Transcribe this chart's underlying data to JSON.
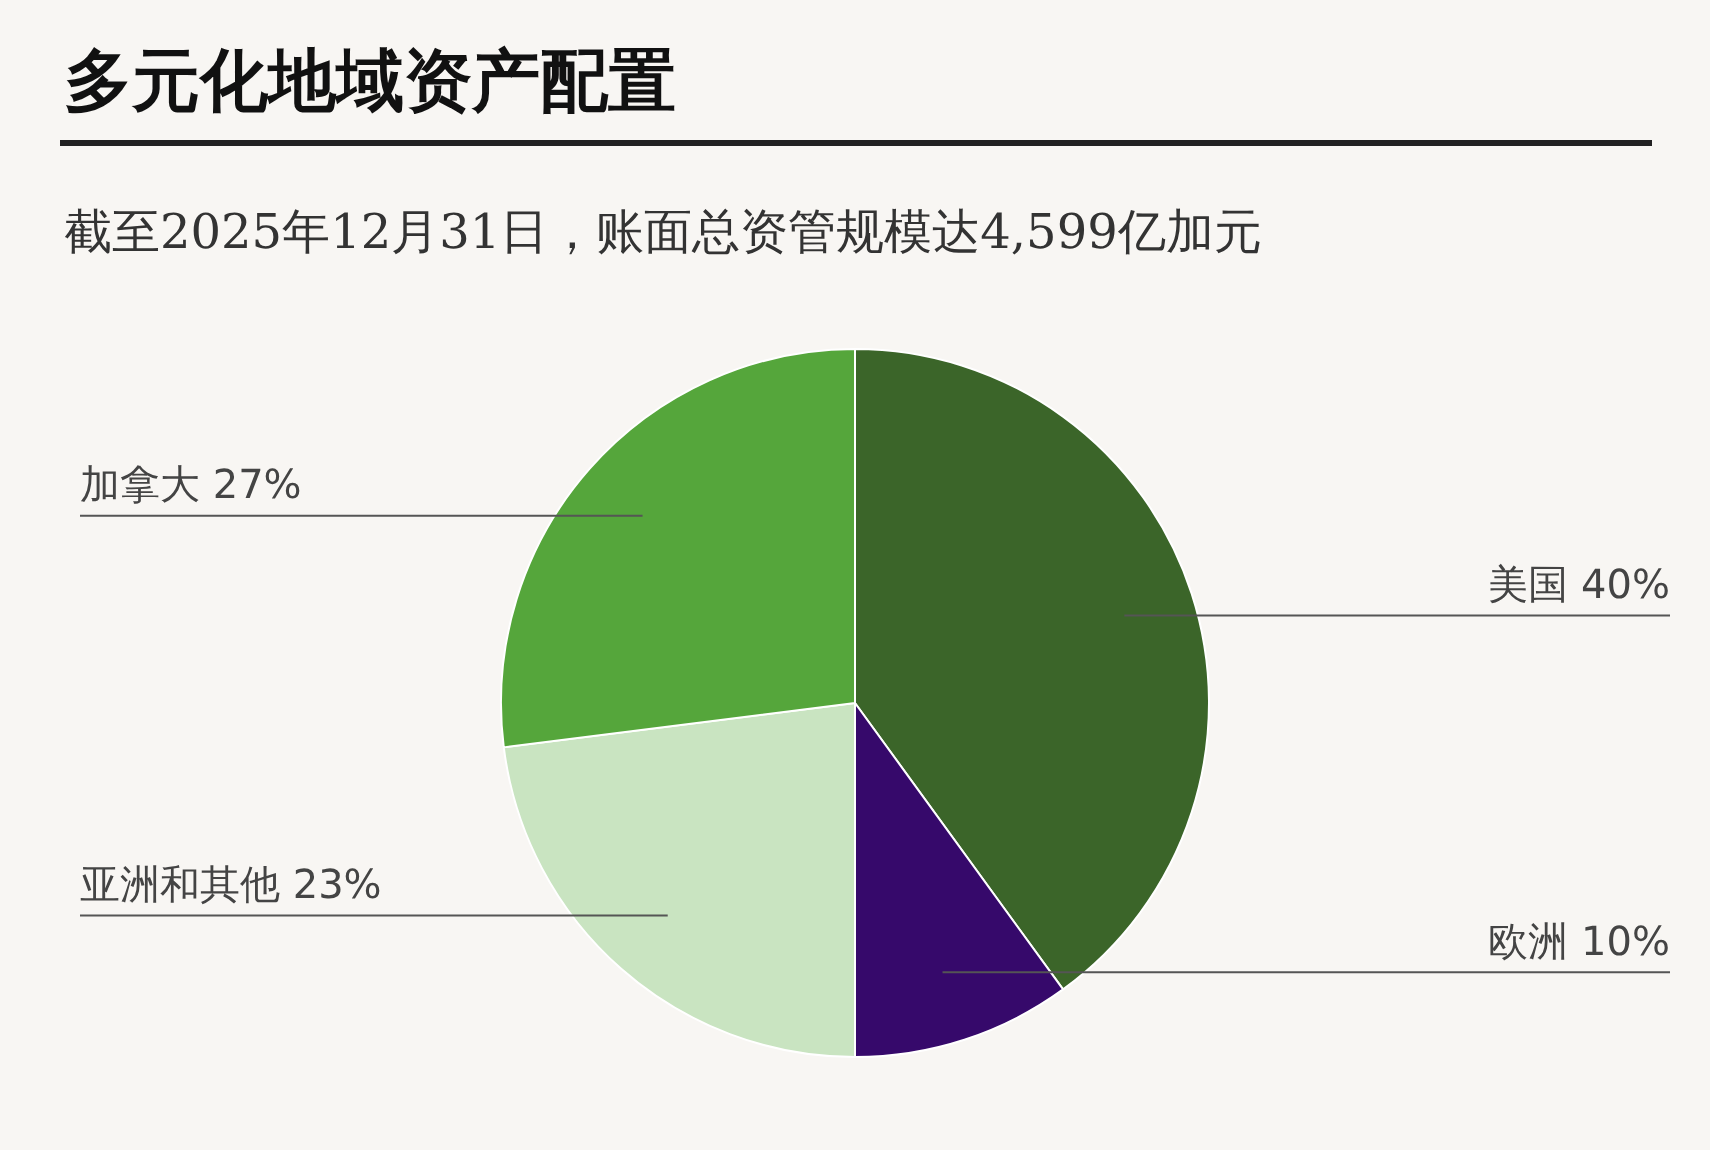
{
  "chart_data": {
    "type": "pie",
    "title": "多元化地域资产配置",
    "subtitle": "截至2025年12月31日，账面总资管规模达4,599亿加元",
    "categories": [
      "美国",
      "欧洲",
      "亚洲和其他",
      "加拿大"
    ],
    "values": [
      40,
      10,
      23,
      27
    ],
    "colors": [
      "#3b6529",
      "#36096b",
      "#c9e4c1",
      "#55a63b"
    ],
    "value_labels": [
      "40%",
      "10%",
      "23%",
      "27%"
    ],
    "legend": false
  }
}
